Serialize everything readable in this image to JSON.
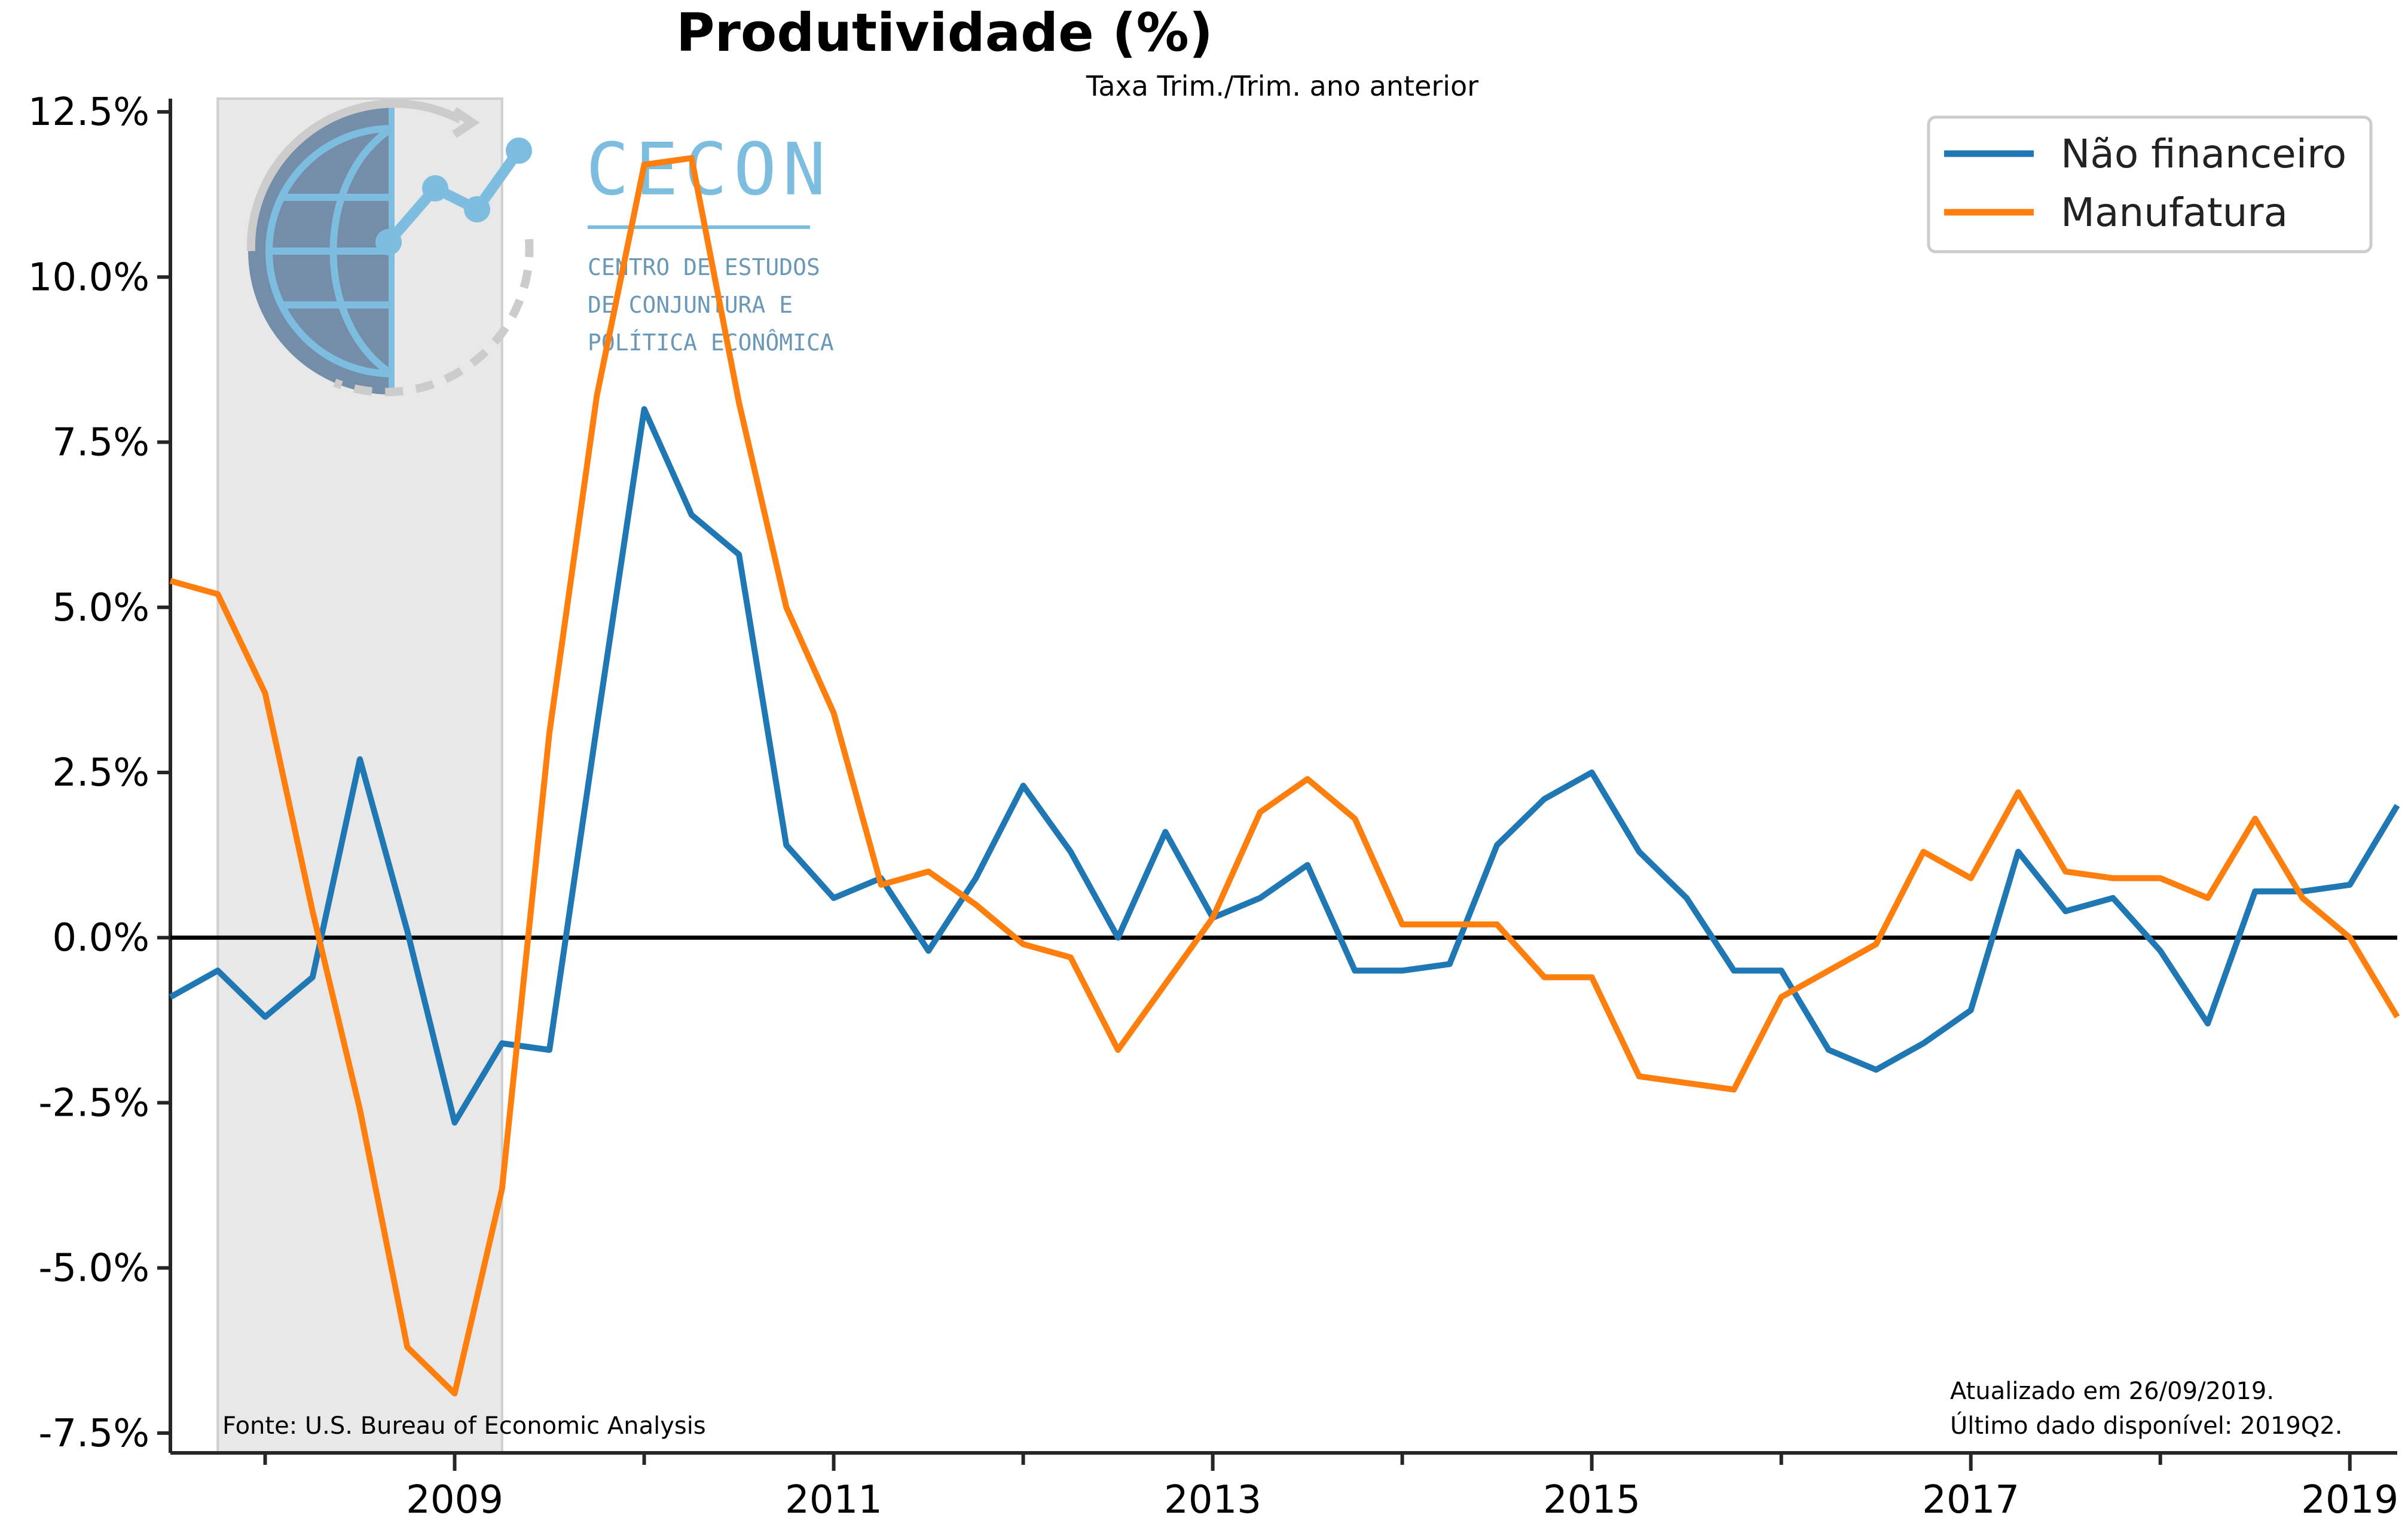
{
  "chart_data": {
    "type": "line",
    "title": "Produtividade (%)",
    "subtitle": "Taxa Trim./Trim. ano anterior",
    "x_tick_labels": [
      "2009",
      "2011",
      "2013",
      "2015",
      "2017",
      "2019"
    ],
    "y_tick_labels": [
      "12.5%",
      "10.0%",
      "7.5%",
      "5.0%",
      "2.5%",
      "0.0%",
      "-2.5%",
      "-5.0%",
      "-7.5%"
    ],
    "ylim": [
      -7.8,
      12.7
    ],
    "xlim": [
      "2007Q3",
      "2019Q2"
    ],
    "zero_line": true,
    "grid": false,
    "legend_position": "top-right",
    "shaded_period": {
      "start": "2007Q4",
      "end": "2009Q2"
    },
    "x": [
      "2007Q3",
      "2007Q4",
      "2008Q1",
      "2008Q2",
      "2008Q3",
      "2008Q4",
      "2009Q1",
      "2009Q2",
      "2009Q3",
      "2009Q4",
      "2010Q1",
      "2010Q2",
      "2010Q3",
      "2010Q4",
      "2011Q1",
      "2011Q2",
      "2011Q3",
      "2011Q4",
      "2012Q1",
      "2012Q2",
      "2012Q3",
      "2012Q4",
      "2013Q1",
      "2013Q2",
      "2013Q3",
      "2013Q4",
      "2014Q1",
      "2014Q2",
      "2014Q3",
      "2014Q4",
      "2015Q1",
      "2015Q2",
      "2015Q3",
      "2015Q4",
      "2016Q1",
      "2016Q2",
      "2016Q3",
      "2016Q4",
      "2017Q1",
      "2017Q2",
      "2017Q3",
      "2017Q4",
      "2018Q1",
      "2018Q2",
      "2018Q3",
      "2018Q4",
      "2019Q1",
      "2019Q2"
    ],
    "series": [
      {
        "name": "Não financeiro",
        "color": "#1f77b4",
        "values": [
          -0.9,
          -0.5,
          -1.2,
          -0.6,
          2.7,
          0.1,
          -2.8,
          -1.6,
          -1.7,
          3.2,
          8.0,
          6.4,
          5.8,
          1.4,
          0.6,
          0.9,
          -0.2,
          0.9,
          2.3,
          1.3,
          0.0,
          1.6,
          0.3,
          0.6,
          1.1,
          -0.5,
          -0.5,
          -0.4,
          1.4,
          2.1,
          2.5,
          1.3,
          0.6,
          -0.5,
          -0.5,
          -1.7,
          -2.0,
          -1.6,
          -1.1,
          1.3,
          0.4,
          0.6,
          -0.2,
          -1.3,
          0.7,
          0.7,
          0.8,
          2.0
        ]
      },
      {
        "name": "Manufatura",
        "color": "#ff7f0e",
        "values": [
          5.4,
          5.2,
          3.7,
          0.4,
          -2.6,
          -6.2,
          -6.9,
          -3.8,
          3.1,
          8.2,
          11.7,
          11.8,
          8.1,
          5.0,
          3.4,
          0.8,
          1.0,
          0.5,
          -0.1,
          -0.3,
          -1.7,
          -0.7,
          0.3,
          1.9,
          2.4,
          1.8,
          0.2,
          0.2,
          0.2,
          -0.6,
          -0.6,
          -2.1,
          -2.2,
          -2.3,
          -0.9,
          -0.5,
          -0.1,
          1.3,
          0.9,
          2.2,
          1.0,
          0.9,
          0.9,
          0.6,
          1.8,
          0.6,
          0.0,
          -1.2
        ]
      }
    ],
    "source_note": "Fonte: U.S. Bureau of Economic Analysis",
    "update_note_line1": "Atualizado em 26/09/2019.",
    "update_note_line2": "Último dado disponível: 2019Q2."
  },
  "logo": {
    "name": "CECON",
    "subtitle_line1": "CENTRO DE ESTUDOS",
    "subtitle_line2": "DE CONJUNTURA E",
    "subtitle_line3": "POLÍTICA ECONÔMICA"
  }
}
